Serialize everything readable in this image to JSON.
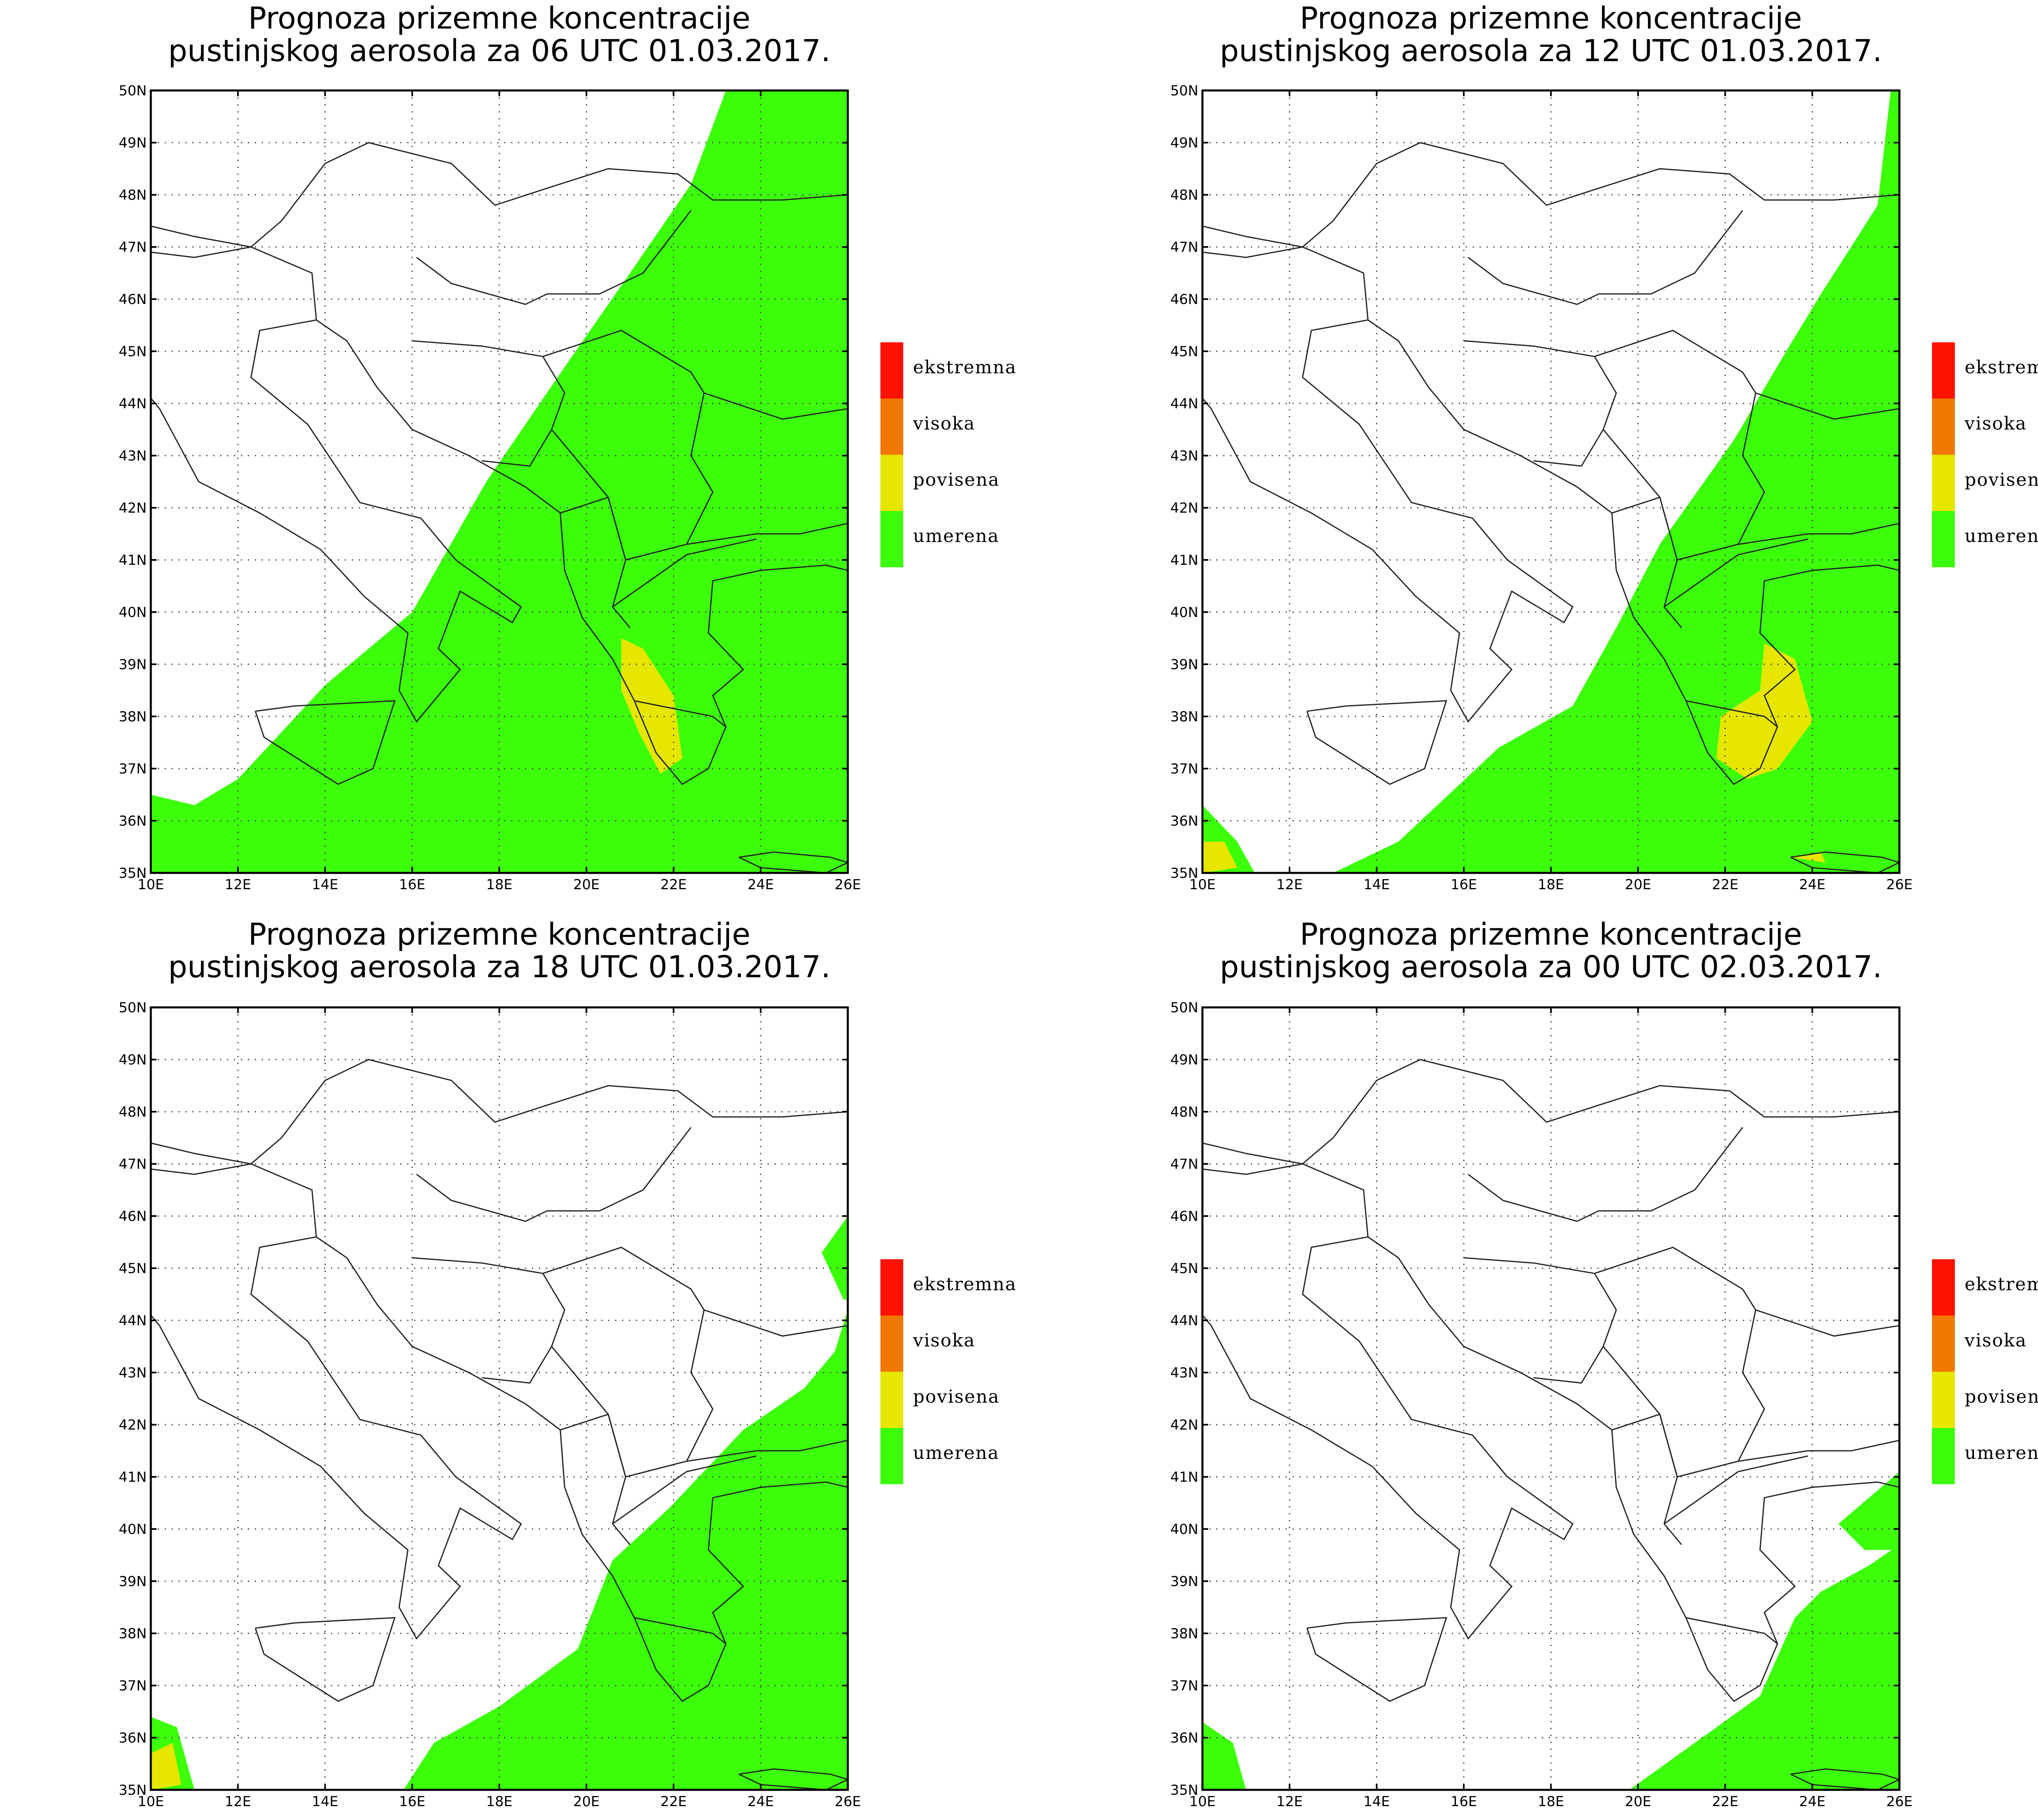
{
  "panels": [
    {
      "title_line1": "Prognoza prizemne koncentracije",
      "title_line2": "pustinjskog aerosola za 06 UTC 01.03.2017.",
      "time": "06 UTC 01.03.2017."
    },
    {
      "title_line1": "Prognoza prizemne koncentracije",
      "title_line2": "pustinjskog aerosola za 12 UTC 01.03.2017.",
      "time": "12 UTC 01.03.2017."
    },
    {
      "title_line1": "Prognoza prizemne koncentracije",
      "title_line2": "pustinjskog aerosola za 18 UTC 01.03.2017.",
      "time": "18 UTC 01.03.2017."
    },
    {
      "title_line1": "Prognoza prizemne koncentracije",
      "title_line2": "pustinjskog aerosola za 00 UTC 02.03.2017.",
      "time": "00 UTC 02.03.2017."
    }
  ],
  "axes": {
    "lat_labels": [
      "50N",
      "49N",
      "48N",
      "47N",
      "46N",
      "45N",
      "44N",
      "43N",
      "42N",
      "41N",
      "40N",
      "39N",
      "38N",
      "37N",
      "36N",
      "35N"
    ],
    "lon_labels": [
      "10E",
      "12E",
      "14E",
      "16E",
      "18E",
      "20E",
      "22E",
      "24E",
      "26E"
    ],
    "lat_range": [
      35,
      50
    ],
    "lon_range": [
      10,
      26
    ]
  },
  "legend": [
    {
      "label": "ekstremna",
      "color": "#ff1100"
    },
    {
      "label": "visoka",
      "color": "#f07800"
    },
    {
      "label": "povisena",
      "color": "#e6e600"
    },
    {
      "label": "umerena",
      "color": "#3cff0a"
    }
  ]
}
